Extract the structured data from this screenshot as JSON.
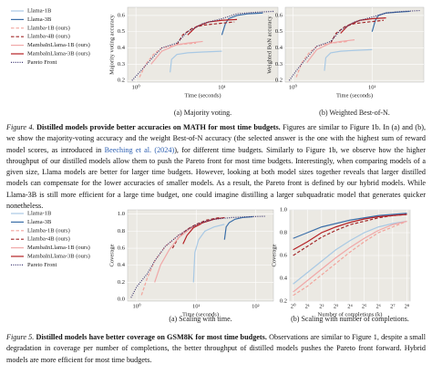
{
  "chart_data": [
    {
      "type": "line",
      "xlabel": "Time (seconds)",
      "ylabel": "Majority voting accuracy",
      "subcaption": "(a) Majority voting.",
      "xlog": true,
      "xlim": [
        0.8,
        45
      ],
      "xticks": [
        {
          "value": 1,
          "label": "10⁰"
        },
        {
          "value": 10,
          "label": "10¹"
        }
      ],
      "ylim": [
        0.19,
        0.65
      ],
      "yticks": [
        0.2,
        0.3,
        0.4,
        0.5,
        0.6
      ],
      "grid": true,
      "legend": "left",
      "series": [
        {
          "name": "Llama-1B",
          "color": "#a9c9e4",
          "style": "solid",
          "x": [
            2.5,
            2.6,
            3,
            4,
            6,
            10
          ],
          "values": [
            0.25,
            0.33,
            0.36,
            0.37,
            0.375,
            0.38
          ]
        },
        {
          "name": "Llama-3B",
          "color": "#3b6fa8",
          "style": "solid",
          "x": [
            10,
            11,
            12,
            15,
            20,
            30
          ],
          "values": [
            0.48,
            0.55,
            0.58,
            0.6,
            0.61,
            0.615
          ]
        },
        {
          "name": "Llamba-1B (ours)",
          "color": "#f2a49c",
          "style": "dashed",
          "x": [
            1.1,
            1.3,
            1.6,
            2,
            3,
            5
          ],
          "values": [
            0.22,
            0.3,
            0.36,
            0.4,
            0.42,
            0.43
          ]
        },
        {
          "name": "Llamba-4B (ours)",
          "color": "#a3282a",
          "style": "dashed",
          "x": [
            3,
            3.5,
            4.5,
            6,
            9,
            14
          ],
          "values": [
            0.42,
            0.48,
            0.52,
            0.54,
            0.55,
            0.56
          ]
        },
        {
          "name": "MambaInLlama-1B (ours)",
          "color": "#f0a8a8",
          "style": "solid",
          "x": [
            1.5,
            2,
            3,
            4,
            6
          ],
          "values": [
            0.3,
            0.38,
            0.42,
            0.43,
            0.44
          ]
        },
        {
          "name": "MambaInLlama-3B (ours)",
          "color": "#b52125",
          "style": "solid",
          "x": [
            4,
            5,
            7,
            10,
            15
          ],
          "values": [
            0.48,
            0.53,
            0.56,
            0.57,
            0.575
          ]
        },
        {
          "name": "Pareto Front",
          "color": "#3a3470",
          "style": "dotted",
          "x": [
            0.9,
            1.1,
            1.5,
            2,
            3,
            4,
            6,
            10,
            15,
            25,
            40
          ],
          "values": [
            0.2,
            0.25,
            0.33,
            0.4,
            0.43,
            0.5,
            0.55,
            0.58,
            0.61,
            0.62,
            0.625
          ]
        }
      ]
    },
    {
      "type": "line",
      "xlabel": "Time (seconds)",
      "ylabel": "Weighted BoN accuracy",
      "subcaption": "(b) Weighted Best-of-N.",
      "xlog": true,
      "xlim": [
        0.8,
        45
      ],
      "xticks": [
        {
          "value": 1,
          "label": "10⁰"
        },
        {
          "value": 10,
          "label": "10¹"
        }
      ],
      "ylim": [
        0.19,
        0.65
      ],
      "yticks": [
        0.2,
        0.3,
        0.4,
        0.5,
        0.6
      ],
      "grid": true,
      "series": [
        {
          "color": "#a9c9e4",
          "style": "solid",
          "x": [
            2.5,
            2.6,
            3,
            4,
            6,
            10
          ],
          "values": [
            0.26,
            0.34,
            0.37,
            0.38,
            0.385,
            0.39
          ]
        },
        {
          "color": "#3b6fa8",
          "style": "solid",
          "x": [
            10,
            11,
            12,
            15,
            20,
            30
          ],
          "values": [
            0.5,
            0.57,
            0.6,
            0.615,
            0.62,
            0.625
          ]
        },
        {
          "color": "#f2a49c",
          "style": "dashed",
          "x": [
            1.1,
            1.3,
            1.6,
            2,
            3,
            5
          ],
          "values": [
            0.22,
            0.31,
            0.37,
            0.41,
            0.43,
            0.44
          ]
        },
        {
          "color": "#a3282a",
          "style": "dashed",
          "x": [
            3,
            3.5,
            4.5,
            6,
            9,
            14
          ],
          "values": [
            0.43,
            0.49,
            0.53,
            0.55,
            0.56,
            0.57
          ]
        },
        {
          "color": "#f0a8a8",
          "style": "solid",
          "x": [
            1.5,
            2,
            3,
            4,
            6
          ],
          "values": [
            0.31,
            0.39,
            0.43,
            0.44,
            0.45
          ]
        },
        {
          "color": "#b52125",
          "style": "solid",
          "x": [
            4,
            5,
            7,
            10,
            15
          ],
          "values": [
            0.49,
            0.54,
            0.57,
            0.58,
            0.585
          ]
        },
        {
          "color": "#3a3470",
          "style": "dotted",
          "x": [
            0.9,
            1.1,
            1.5,
            2,
            3,
            4,
            6,
            10,
            15,
            25,
            40
          ],
          "values": [
            0.2,
            0.26,
            0.34,
            0.41,
            0.44,
            0.51,
            0.56,
            0.59,
            0.615,
            0.625,
            0.63
          ]
        }
      ]
    },
    {
      "type": "line",
      "xlabel": "Time (seconds)",
      "ylabel": "Coverage",
      "subcaption": "(a) Scaling with time.",
      "xlog": true,
      "xlim": [
        0.7,
        200
      ],
      "xticks": [
        {
          "value": 1,
          "label": "10⁰"
        },
        {
          "value": 10,
          "label": "10¹"
        },
        {
          "value": 100,
          "label": "10²"
        }
      ],
      "ylim": [
        -0.02,
        1.05
      ],
      "yticks": [
        {
          "value": 0,
          "label": "0.0"
        },
        0.2,
        0.4,
        0.6,
        0.8,
        {
          "value": 1,
          "label": "1.0"
        }
      ],
      "grid": true,
      "legend": "left",
      "series": [
        {
          "name": "Llama-1B",
          "color": "#a9c9e4",
          "style": "solid",
          "x": [
            9,
            9.5,
            11,
            14,
            20,
            30
          ],
          "values": [
            0.2,
            0.55,
            0.7,
            0.8,
            0.85,
            0.88
          ]
        },
        {
          "name": "Llama-3B",
          "color": "#3b6fa8",
          "style": "solid",
          "x": [
            30,
            32,
            36,
            45,
            60,
            90
          ],
          "values": [
            0.7,
            0.85,
            0.9,
            0.94,
            0.96,
            0.97
          ]
        },
        {
          "name": "Llamba-1B (ours)",
          "color": "#f2a49c",
          "style": "dashed",
          "x": [
            1.2,
            1.5,
            2,
            3,
            5,
            8,
            12
          ],
          "values": [
            0.05,
            0.25,
            0.45,
            0.62,
            0.75,
            0.84,
            0.9
          ]
        },
        {
          "name": "Llamba-4B (ours)",
          "color": "#a3282a",
          "style": "dashed",
          "x": [
            4,
            5,
            7,
            10,
            15,
            25
          ],
          "values": [
            0.6,
            0.72,
            0.82,
            0.88,
            0.93,
            0.96
          ]
        },
        {
          "name": "MambaInLlama-1B (ours)",
          "color": "#f0a8a8",
          "style": "solid",
          "x": [
            2,
            2.5,
            3.5,
            5,
            8,
            12
          ],
          "values": [
            0.2,
            0.4,
            0.58,
            0.72,
            0.83,
            0.88
          ]
        },
        {
          "name": "MambaInLlama-3B (ours)",
          "color": "#b52125",
          "style": "solid",
          "x": [
            6,
            7,
            9,
            13,
            20,
            30
          ],
          "values": [
            0.65,
            0.75,
            0.84,
            0.9,
            0.94,
            0.96
          ]
        },
        {
          "name": "Pareto Front",
          "color": "#3a3470",
          "style": "dotted",
          "x": [
            0.8,
            1,
            1.5,
            2,
            3,
            5,
            8,
            12,
            20,
            40,
            80,
            150
          ],
          "values": [
            0.02,
            0.15,
            0.3,
            0.45,
            0.62,
            0.75,
            0.84,
            0.9,
            0.94,
            0.96,
            0.97,
            0.975
          ]
        }
      ]
    },
    {
      "type": "line",
      "xlabel": "Number of completions (k)",
      "ylabel": "Coverage",
      "subcaption": "(b) Scaling with number of completions.",
      "xlog": true,
      "xlim": [
        0.85,
        300
      ],
      "xticks": [
        {
          "value": 1,
          "label": "2⁰"
        },
        {
          "value": 2,
          "label": "2¹"
        },
        {
          "value": 4,
          "label": "2²"
        },
        {
          "value": 8,
          "label": "2³"
        },
        {
          "value": 16,
          "label": "2⁴"
        },
        {
          "value": 32,
          "label": "2⁵"
        },
        {
          "value": 64,
          "label": "2⁶"
        },
        {
          "value": 128,
          "label": "2⁷"
        },
        {
          "value": 256,
          "label": "2⁸"
        }
      ],
      "ylim": [
        0.2,
        1.0
      ],
      "yticks": [
        0.2,
        0.4,
        0.6,
        0.8,
        {
          "value": 1,
          "label": "1.0"
        }
      ],
      "grid": true,
      "x": [
        1,
        2,
        4,
        8,
        16,
        32,
        64,
        128,
        256
      ],
      "series": [
        {
          "color": "#a9c9e4",
          "style": "solid",
          "values": [
            0.35,
            0.45,
            0.55,
            0.65,
            0.73,
            0.8,
            0.85,
            0.88,
            0.9
          ]
        },
        {
          "color": "#3b6fa8",
          "style": "solid",
          "values": [
            0.75,
            0.8,
            0.85,
            0.88,
            0.91,
            0.93,
            0.95,
            0.96,
            0.97
          ]
        },
        {
          "color": "#f2a49c",
          "style": "dashed",
          "values": [
            0.25,
            0.33,
            0.43,
            0.53,
            0.63,
            0.72,
            0.8,
            0.85,
            0.9
          ]
        },
        {
          "color": "#a3282a",
          "style": "dashed",
          "values": [
            0.6,
            0.68,
            0.76,
            0.82,
            0.87,
            0.9,
            0.93,
            0.95,
            0.96
          ]
        },
        {
          "color": "#f0a8a8",
          "style": "solid",
          "values": [
            0.28,
            0.38,
            0.48,
            0.58,
            0.67,
            0.75,
            0.82,
            0.87,
            0.9
          ]
        },
        {
          "color": "#b52125",
          "style": "solid",
          "values": [
            0.65,
            0.72,
            0.8,
            0.85,
            0.89,
            0.92,
            0.94,
            0.95,
            0.96
          ]
        }
      ]
    }
  ],
  "captions": [
    {
      "label": "Figure 4.",
      "title": "Distilled models provide better accuracies on MATH for most time budgets.",
      "text": [
        "Figures are similar to Figure 1b. In (a) and (b), we show the majority-voting accuracy and the weight Best-of-N accuracy (the selected answer is the one with the highest sum of reward model scores, as introduced in ",
        "Beeching et al. (2024)",
        "), for different time budgets. Similarly to Figure 1b, we observe how the higher throughput of our distilled models allow them to push the Pareto front for most time budgets. Interestingly, when comparing models of a given size, Llama models are better for larger time budgets. However, looking at both model sizes together reveals that larger distilled models can compensate for the lower accuracies of smaller models. As a result, the Pareto front is defined by our hybrid models. While Llama-3B is still more efficient for a large time budget, one could imagine distilling a larger subquadratic model that generates quicker nonetheless."
      ]
    },
    {
      "label": "Figure 5.",
      "title": "Distilled models have better coverage on GSM8K for most time budgets.",
      "text": [
        "Observations are similar to Figure 1, despite a small degradation in coverage per number of completions, the better throughput of distilled models pushes the Pareto front forward. Hybrid models are more efficient for most time budgets."
      ]
    }
  ]
}
